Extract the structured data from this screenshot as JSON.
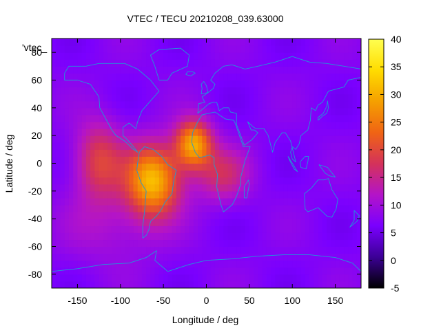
{
  "chart_data": {
    "type": "heatmap",
    "title": "VTEC / TECU 20210208_039.63000",
    "xlabel": "Longitude / deg",
    "ylabel": "Latitude / deg",
    "series_label": "'vtec_",
    "xlim": [
      -180,
      180
    ],
    "ylim": [
      -90,
      90
    ],
    "x_ticks": [
      -150,
      -100,
      -50,
      0,
      50,
      100,
      150
    ],
    "y_ticks": [
      -80,
      -60,
      -40,
      -20,
      0,
      20,
      40,
      60,
      80
    ],
    "colorbar": {
      "range": [
        -5,
        40
      ],
      "ticks": [
        -5,
        0,
        5,
        10,
        15,
        20,
        25,
        30,
        35,
        40
      ],
      "palette": [
        "#000000",
        "#3c0096",
        "#7a00ff",
        "#b414c8",
        "#d4325a",
        "#f06414",
        "#f5a000",
        "#ffdc00",
        "#ffff50"
      ]
    },
    "background_vtec": 7,
    "features": [
      {
        "name": "south-america-peak",
        "lon": -62,
        "lat": -12,
        "amp": 24,
        "sx": 22,
        "sy": 18
      },
      {
        "name": "atlantic-peak",
        "lon": -15,
        "lat": 14,
        "amp": 22,
        "sx": 15,
        "sy": 12
      },
      {
        "name": "pacific-band",
        "lon": -125,
        "lat": 2,
        "amp": 12,
        "sx": 20,
        "sy": 20
      },
      {
        "name": "africa-west",
        "lon": 18,
        "lat": -8,
        "amp": 9,
        "sx": 22,
        "sy": 14
      },
      {
        "name": "south-pacific",
        "lon": -110,
        "lat": -45,
        "amp": 4,
        "sx": 40,
        "sy": 20
      }
    ],
    "continent_color": "#1e9ad6",
    "continent_outlines": [
      {
        "name": "north-america",
        "points": [
          [
            -165,
            65
          ],
          [
            -160,
            70
          ],
          [
            -140,
            70
          ],
          [
            -125,
            72
          ],
          [
            -95,
            72
          ],
          [
            -80,
            68
          ],
          [
            -65,
            60
          ],
          [
            -55,
            52
          ],
          [
            -65,
            45
          ],
          [
            -75,
            38
          ],
          [
            -80,
            30
          ],
          [
            -82,
            25
          ],
          [
            -90,
            29
          ],
          [
            -97,
            26
          ],
          [
            -97,
            20
          ],
          [
            -92,
            17
          ],
          [
            -85,
            12
          ],
          [
            -80,
            8
          ],
          [
            -85,
            10
          ],
          [
            -95,
            16
          ],
          [
            -105,
            20
          ],
          [
            -110,
            24
          ],
          [
            -117,
            32
          ],
          [
            -124,
            40
          ],
          [
            -125,
            48
          ],
          [
            -135,
            57
          ],
          [
            -150,
            60
          ],
          [
            -165,
            60
          ],
          [
            -165,
            65
          ]
        ]
      },
      {
        "name": "greenland",
        "points": [
          [
            -55,
            60
          ],
          [
            -45,
            60
          ],
          [
            -40,
            65
          ],
          [
            -22,
            70
          ],
          [
            -20,
            78
          ],
          [
            -30,
            83
          ],
          [
            -55,
            82
          ],
          [
            -65,
            78
          ],
          [
            -60,
            70
          ],
          [
            -55,
            60
          ]
        ]
      },
      {
        "name": "south-america",
        "points": [
          [
            -78,
            8
          ],
          [
            -72,
            12
          ],
          [
            -62,
            10
          ],
          [
            -52,
            5
          ],
          [
            -45,
            -1
          ],
          [
            -35,
            -5
          ],
          [
            -38,
            -13
          ],
          [
            -40,
            -22
          ],
          [
            -48,
            -28
          ],
          [
            -53,
            -34
          ],
          [
            -58,
            -38
          ],
          [
            -65,
            -42
          ],
          [
            -67,
            -48
          ],
          [
            -70,
            -52
          ],
          [
            -74,
            -54
          ],
          [
            -74,
            -45
          ],
          [
            -72,
            -35
          ],
          [
            -70,
            -20
          ],
          [
            -76,
            -14
          ],
          [
            -81,
            -5
          ],
          [
            -80,
            0
          ],
          [
            -78,
            8
          ]
        ]
      },
      {
        "name": "africa",
        "points": [
          [
            -17,
            15
          ],
          [
            -16,
            22
          ],
          [
            -10,
            30
          ],
          [
            -5,
            35
          ],
          [
            10,
            37
          ],
          [
            22,
            32
          ],
          [
            32,
            31
          ],
          [
            34,
            28
          ],
          [
            43,
            12
          ],
          [
            51,
            12
          ],
          [
            45,
            2
          ],
          [
            40,
            -10
          ],
          [
            40,
            -15
          ],
          [
            35,
            -24
          ],
          [
            30,
            -30
          ],
          [
            20,
            -35
          ],
          [
            17,
            -30
          ],
          [
            12,
            -17
          ],
          [
            13,
            -8
          ],
          [
            9,
            -1
          ],
          [
            9,
            4
          ],
          [
            4,
            6
          ],
          [
            -8,
            4
          ],
          [
            -13,
            8
          ],
          [
            -17,
            15
          ]
        ]
      },
      {
        "name": "eurasia",
        "points": [
          [
            -10,
            36
          ],
          [
            -9,
            43
          ],
          [
            -2,
            44
          ],
          [
            -5,
            48
          ],
          [
            2,
            51
          ],
          [
            8,
            54
          ],
          [
            10,
            57
          ],
          [
            5,
            60
          ],
          [
            10,
            65
          ],
          [
            20,
            70
          ],
          [
            30,
            71
          ],
          [
            45,
            68
          ],
          [
            60,
            70
          ],
          [
            80,
            73
          ],
          [
            100,
            77
          ],
          [
            120,
            73
          ],
          [
            140,
            72
          ],
          [
            160,
            70
          ],
          [
            180,
            68
          ],
          [
            180,
            62
          ],
          [
            165,
            60
          ],
          [
            160,
            55
          ],
          [
            142,
            52
          ],
          [
            135,
            44
          ],
          [
            130,
            42
          ],
          [
            127,
            38
          ],
          [
            122,
            40
          ],
          [
            121,
            31
          ],
          [
            118,
            24
          ],
          [
            110,
            20
          ],
          [
            108,
            14
          ],
          [
            104,
            10
          ],
          [
            100,
            12
          ],
          [
            98,
            8
          ],
          [
            100,
            3
          ],
          [
            104,
            1
          ],
          [
            98,
            16
          ],
          [
            92,
            22
          ],
          [
            88,
            22
          ],
          [
            80,
            15
          ],
          [
            77,
            8
          ],
          [
            72,
            20
          ],
          [
            67,
            25
          ],
          [
            58,
            25
          ],
          [
            55,
            26
          ],
          [
            48,
            30
          ],
          [
            52,
            24
          ],
          [
            56,
            24
          ],
          [
            60,
            22
          ],
          [
            53,
            17
          ],
          [
            44,
            13
          ],
          [
            40,
            20
          ],
          [
            35,
            28
          ],
          [
            35,
            36
          ],
          [
            28,
            37
          ],
          [
            26,
            40
          ],
          [
            20,
            40
          ],
          [
            15,
            38
          ],
          [
            12,
            44
          ],
          [
            8,
            44
          ],
          [
            3,
            43
          ],
          [
            -10,
            36
          ]
        ]
      },
      {
        "name": "australia",
        "points": [
          [
            114,
            -22
          ],
          [
            122,
            -18
          ],
          [
            130,
            -12
          ],
          [
            137,
            -12
          ],
          [
            142,
            -11
          ],
          [
            146,
            -19
          ],
          [
            153,
            -26
          ],
          [
            151,
            -33
          ],
          [
            146,
            -39
          ],
          [
            140,
            -38
          ],
          [
            135,
            -35
          ],
          [
            130,
            -32
          ],
          [
            118,
            -35
          ],
          [
            115,
            -33
          ],
          [
            114,
            -22
          ]
        ]
      },
      {
        "name": "antarctica",
        "points": [
          [
            -180,
            -78
          ],
          [
            -150,
            -76
          ],
          [
            -120,
            -73
          ],
          [
            -90,
            -72
          ],
          [
            -70,
            -68
          ],
          [
            -58,
            -63
          ],
          [
            -60,
            -70
          ],
          [
            -45,
            -78
          ],
          [
            -20,
            -73
          ],
          [
            0,
            -70
          ],
          [
            30,
            -69
          ],
          [
            60,
            -67
          ],
          [
            90,
            -66
          ],
          [
            120,
            -66
          ],
          [
            150,
            -68
          ],
          [
            170,
            -72
          ],
          [
            180,
            -78
          ]
        ]
      },
      {
        "name": "madagascar",
        "points": [
          [
            44,
            -25
          ],
          [
            47,
            -25
          ],
          [
            50,
            -15
          ],
          [
            49,
            -12
          ],
          [
            44,
            -17
          ],
          [
            44,
            -25
          ]
        ]
      },
      {
        "name": "uk",
        "points": [
          [
            -6,
            50
          ],
          [
            2,
            51
          ],
          [
            0,
            56
          ],
          [
            -3,
            59
          ],
          [
            -6,
            57
          ],
          [
            -5,
            54
          ],
          [
            -6,
            50
          ]
        ]
      },
      {
        "name": "japan",
        "points": [
          [
            130,
            31
          ],
          [
            135,
            34
          ],
          [
            140,
            36
          ],
          [
            142,
            40
          ],
          [
            141,
            45
          ],
          [
            140,
            41
          ],
          [
            136,
            36
          ],
          [
            130,
            33
          ],
          [
            130,
            31
          ]
        ]
      },
      {
        "name": "new-zealand",
        "points": [
          [
            172,
            -34
          ],
          [
            178,
            -38
          ],
          [
            175,
            -42
          ],
          [
            171,
            -44
          ],
          [
            167,
            -46
          ],
          [
            172,
            -41
          ],
          [
            172,
            -34
          ]
        ]
      },
      {
        "name": "borneo",
        "points": [
          [
            109,
            1
          ],
          [
            115,
            5
          ],
          [
            119,
            5
          ],
          [
            118,
            1
          ],
          [
            116,
            -4
          ],
          [
            110,
            -3
          ],
          [
            109,
            1
          ]
        ]
      },
      {
        "name": "sumatra",
        "points": [
          [
            95,
            5
          ],
          [
            100,
            0
          ],
          [
            106,
            -6
          ],
          [
            102,
            -4
          ],
          [
            97,
            2
          ],
          [
            95,
            5
          ]
        ]
      },
      {
        "name": "new-guinea",
        "points": [
          [
            131,
            -1
          ],
          [
            141,
            -3
          ],
          [
            150,
            -10
          ],
          [
            143,
            -9
          ],
          [
            138,
            -7
          ],
          [
            131,
            -1
          ]
        ]
      },
      {
        "name": "iceland",
        "points": [
          [
            -24,
            64
          ],
          [
            -22,
            66
          ],
          [
            -16,
            66
          ],
          [
            -13,
            65
          ],
          [
            -18,
            63
          ],
          [
            -24,
            64
          ]
        ]
      }
    ]
  }
}
